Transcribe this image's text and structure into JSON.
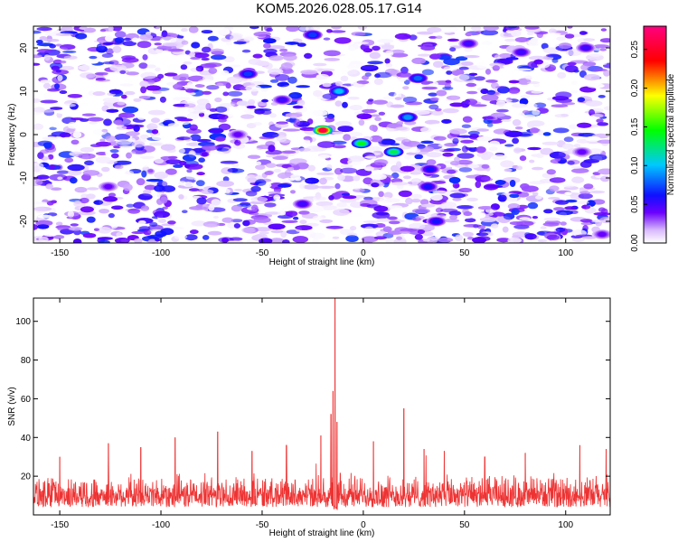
{
  "title": "KOM5.2026.028.05.17.G14",
  "chart_data": [
    {
      "type": "heatmap",
      "xlabel": "Height of straight line (km)",
      "ylabel": "Frequency (Hz)",
      "xlim": [
        -163,
        122
      ],
      "ylim": [
        -25,
        25
      ],
      "x_ticks": [
        -150,
        -100,
        -50,
        0,
        50,
        100
      ],
      "y_ticks": [
        -20,
        -10,
        0,
        10,
        20
      ],
      "grid": false,
      "colorbar": {
        "label": "Normalized spectral amplitude",
        "range": [
          0,
          0.28
        ],
        "ticks": [
          "0.00",
          "0.05",
          "0.10",
          "0.15",
          "0.20",
          "0.25"
        ],
        "colors": [
          "#ffffff",
          "#6a00ff",
          "#0000ff",
          "#00c8ff",
          "#00ff00",
          "#ffff00",
          "#ff0000",
          "#ff0080"
        ]
      },
      "gaps": [
        {
          "x_center": -23,
          "half_width": 3
        },
        {
          "x_center": -4,
          "half_width": 2
        }
      ],
      "hotspots": [
        {
          "x": -20,
          "y": 1,
          "value": 0.26
        },
        {
          "x": -1,
          "y": -2,
          "value": 0.14
        },
        {
          "x": 15,
          "y": -4,
          "value": 0.13
        },
        {
          "x": 22,
          "y": 4,
          "value": 0.09
        },
        {
          "x": 27,
          "y": 13,
          "value": 0.08
        },
        {
          "x": -12,
          "y": 10,
          "value": 0.1
        },
        {
          "x": -57,
          "y": 14,
          "value": 0.07
        },
        {
          "x": -25,
          "y": 23,
          "value": 0.07
        },
        {
          "x": 32,
          "y": -12,
          "value": 0.06
        },
        {
          "x": 36,
          "y": -20,
          "value": 0.06
        },
        {
          "x": 33,
          "y": -8,
          "value": 0.06
        },
        {
          "x": -30,
          "y": -16,
          "value": 0.05
        },
        {
          "x": 52,
          "y": 21,
          "value": 0.05
        },
        {
          "x": 78,
          "y": 19,
          "value": 0.05
        },
        {
          "x": 110,
          "y": 20,
          "value": 0.05
        },
        {
          "x": -40,
          "y": 8,
          "value": 0.05
        },
        {
          "x": -126,
          "y": -12,
          "value": 0.04
        },
        {
          "x": -62,
          "y": 0,
          "value": 0.04
        },
        {
          "x": 108,
          "y": -4,
          "value": 0.04
        },
        {
          "x": 118,
          "y": -23,
          "value": 0.04
        }
      ]
    },
    {
      "type": "line",
      "xlabel": "Height of straight line (km)",
      "ylabel": "SNR (v/v)",
      "xlim": [
        -163,
        122
      ],
      "ylim": [
        0,
        112
      ],
      "x_ticks": [
        -150,
        -100,
        -50,
        0,
        50,
        100
      ],
      "y_ticks": [
        20,
        40,
        60,
        80,
        100
      ],
      "grid": false,
      "series": [
        {
          "color": "#ee3333",
          "baseline_min": 4,
          "baseline_max": 22
        }
      ],
      "peaks": [
        {
          "x": -14,
          "value": 112
        },
        {
          "x": -15,
          "value": 64
        },
        {
          "x": -16,
          "value": 52
        },
        {
          "x": -13,
          "value": 48
        },
        {
          "x": 20,
          "value": 55
        },
        {
          "x": -72,
          "value": 43
        },
        {
          "x": -93,
          "value": 40
        },
        {
          "x": -21,
          "value": 41
        },
        {
          "x": -38,
          "value": 36
        },
        {
          "x": 5,
          "value": 38
        },
        {
          "x": 107,
          "value": 36
        },
        {
          "x": -126,
          "value": 37
        },
        {
          "x": -150,
          "value": 30
        },
        {
          "x": -110,
          "value": 35
        },
        {
          "x": 40,
          "value": 33
        },
        {
          "x": 60,
          "value": 30
        },
        {
          "x": 80,
          "value": 32
        },
        {
          "x": 120,
          "value": 34
        },
        {
          "x": -55,
          "value": 33
        },
        {
          "x": 30,
          "value": 34
        }
      ]
    }
  ]
}
